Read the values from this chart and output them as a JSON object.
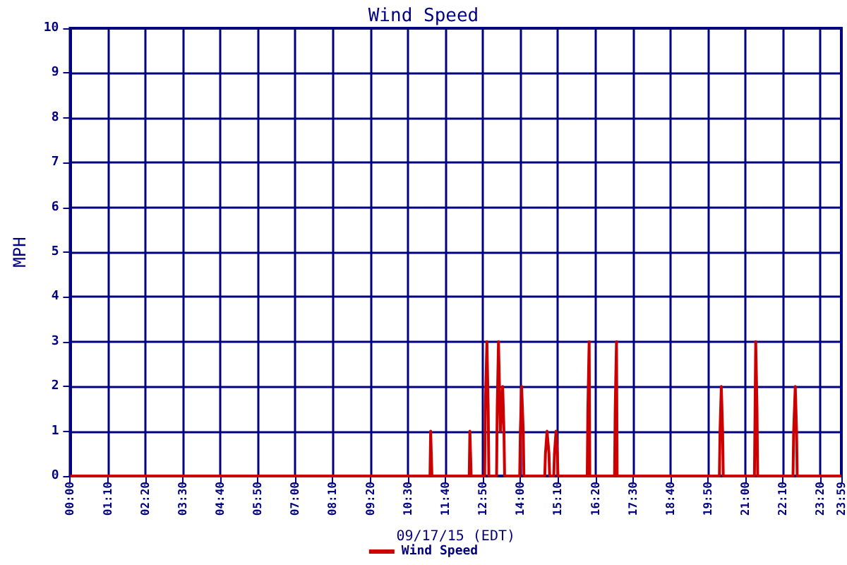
{
  "chart_data": {
    "type": "line",
    "title": "Wind Speed",
    "xlabel": "09/17/15 (EDT)",
    "ylabel": "MPH",
    "xlim": [
      0,
      23.9833
    ],
    "xticks": [
      {
        "value": 0,
        "label": "00:00"
      },
      {
        "value": 1.1667,
        "label": "01:10"
      },
      {
        "value": 2.3333,
        "label": "02:20"
      },
      {
        "value": 3.5,
        "label": "03:30"
      },
      {
        "value": 4.6667,
        "label": "04:40"
      },
      {
        "value": 5.8333,
        "label": "05:50"
      },
      {
        "value": 7,
        "label": "07:00"
      },
      {
        "value": 8.1667,
        "label": "08:10"
      },
      {
        "value": 9.3333,
        "label": "09:20"
      },
      {
        "value": 10.5,
        "label": "10:30"
      },
      {
        "value": 11.6667,
        "label": "11:40"
      },
      {
        "value": 12.8333,
        "label": "12:50"
      },
      {
        "value": 14,
        "label": "14:00"
      },
      {
        "value": 15.1667,
        "label": "15:10"
      },
      {
        "value": 16.3333,
        "label": "16:20"
      },
      {
        "value": 17.5,
        "label": "17:30"
      },
      {
        "value": 18.6667,
        "label": "18:40"
      },
      {
        "value": 19.8333,
        "label": "19:50"
      },
      {
        "value": 21,
        "label": "21:00"
      },
      {
        "value": 22.1667,
        "label": "22:10"
      },
      {
        "value": 23.3333,
        "label": "23:20"
      },
      {
        "value": 23.9833,
        "label": "23:59"
      }
    ],
    "ylim": [
      0,
      10
    ],
    "yticks": [
      0,
      1,
      2,
      3,
      4,
      5,
      6,
      7,
      8,
      9,
      10
    ],
    "grid": true,
    "legend": "bottom",
    "marker": "none",
    "line_style": "solid",
    "series": [
      {
        "name": "Wind Speed",
        "color": "#cc0000",
        "x": [
          0,
          11.19,
          11.21,
          11.23,
          11.25,
          12.41,
          12.43,
          12.45,
          12.47,
          12.89,
          12.91,
          12.96,
          13.0,
          13.02,
          13.26,
          13.28,
          13.32,
          13.38,
          13.45,
          13.49,
          13.51,
          13.98,
          14.0,
          14.04,
          14.09,
          14.11,
          14.76,
          14.78,
          14.83,
          14.85,
          14.89,
          14.91,
          15.04,
          15.06,
          15.11,
          15.15,
          15.17,
          16.08,
          16.1,
          16.14,
          16.16,
          16.93,
          16.95,
          16.99,
          17.01,
          20.19,
          20.21,
          20.25,
          20.29,
          20.31,
          21.28,
          21.3,
          21.32,
          21.36,
          21.38,
          22.48,
          22.5,
          22.55,
          22.59,
          22.61,
          23.9833
        ],
        "values": [
          0,
          0,
          1,
          0.5,
          0,
          0,
          1,
          0.5,
          0,
          0,
          1.5,
          3,
          1.5,
          0,
          0,
          1.5,
          3,
          1,
          2,
          1,
          0,
          0,
          1,
          2,
          1,
          0,
          0,
          0.5,
          1,
          1,
          0.5,
          0,
          0,
          0.5,
          1,
          0.5,
          0,
          0,
          1.5,
          3,
          0,
          0,
          1.5,
          3,
          0,
          0,
          1,
          2,
          1,
          0,
          0,
          1.5,
          3,
          1.5,
          0,
          0,
          1,
          2,
          1,
          0,
          0
        ]
      }
    ]
  }
}
